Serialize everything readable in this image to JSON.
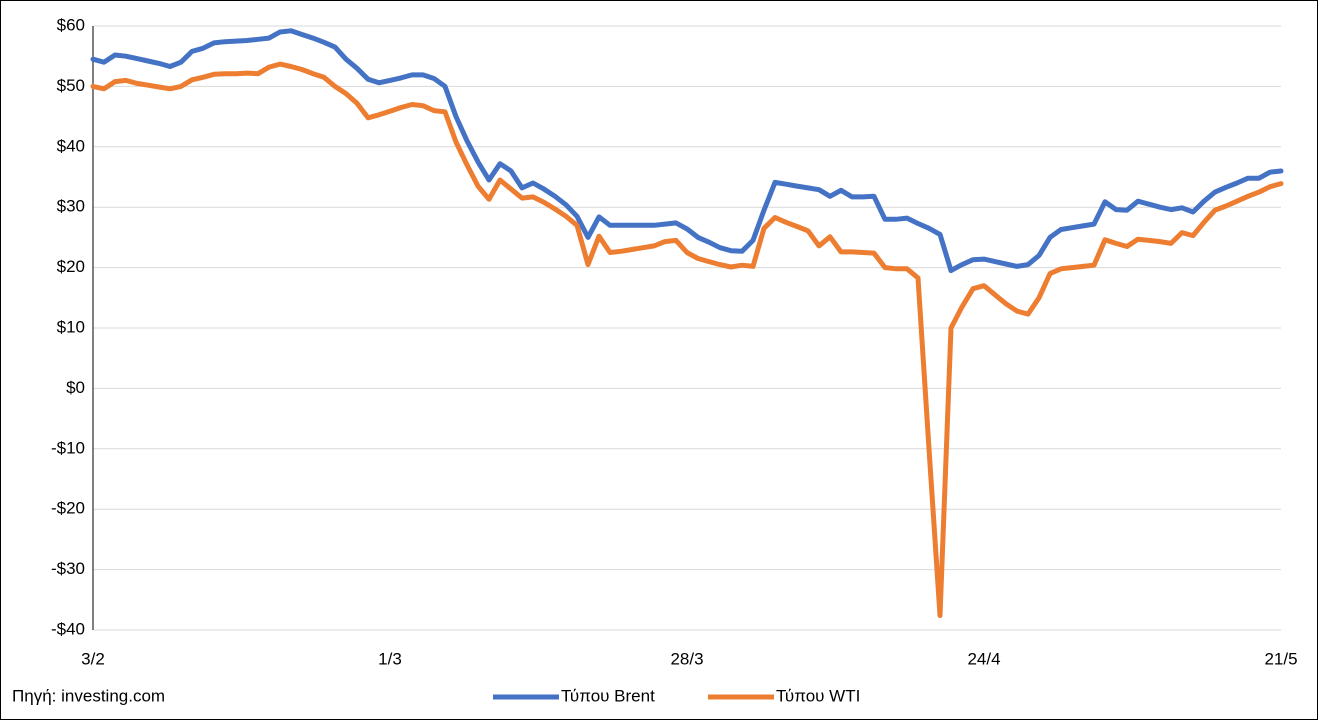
{
  "chart_data": {
    "type": "line",
    "source": "Πηγή: investing.com",
    "categories": [
      "3/2",
      null,
      null,
      null,
      null,
      null,
      null,
      null,
      null,
      null,
      null,
      null,
      null,
      null,
      null,
      null,
      null,
      null,
      null,
      null,
      null,
      null,
      null,
      null,
      null,
      null,
      null,
      "1/3",
      null,
      null,
      null,
      null,
      null,
      null,
      null,
      null,
      null,
      null,
      null,
      null,
      null,
      null,
      null,
      null,
      null,
      null,
      null,
      null,
      null,
      null,
      null,
      null,
      null,
      null,
      "28/3",
      null,
      null,
      null,
      null,
      null,
      null,
      null,
      null,
      null,
      null,
      null,
      null,
      null,
      null,
      null,
      null,
      null,
      null,
      null,
      null,
      null,
      null,
      null,
      null,
      null,
      null,
      "24/4",
      null,
      null,
      null,
      null,
      null,
      null,
      null,
      null,
      null,
      null,
      null,
      null,
      null,
      null,
      null,
      null,
      null,
      null,
      null,
      null,
      null,
      null,
      null,
      null,
      null,
      null,
      "21/5"
    ],
    "series": [
      {
        "name": "Τύπου Brent",
        "color": "#4472c4",
        "values": [
          54.5,
          54,
          55.2,
          55,
          54.6,
          54.2,
          53.8,
          53.3,
          54,
          55.8,
          56.3,
          57.2,
          57.4,
          57.5,
          57.6,
          57.8,
          58,
          59,
          59.2,
          58.6,
          58,
          57.3,
          56.5,
          54.5,
          53,
          51.2,
          50.6,
          51,
          51.4,
          51.9,
          51.9,
          51.3,
          50,
          45,
          41,
          37.5,
          34.5,
          37.2,
          36,
          33.2,
          34,
          33,
          31.8,
          30.4,
          28.5,
          25,
          28.4,
          27,
          27,
          27,
          27,
          27,
          27.2,
          27.4,
          26.4,
          25,
          24.2,
          23.3,
          22.8,
          22.7,
          24.5,
          29.5,
          34.1,
          33.8,
          33.5,
          33.2,
          32.9,
          31.8,
          32.8,
          31.7,
          31.7,
          31.8,
          28,
          28,
          28.2,
          27.3,
          26.5,
          25.5,
          19.5,
          20.5,
          21.3,
          21.4,
          21,
          20.6,
          20.2,
          20.5,
          22,
          25,
          26.3,
          26.6,
          26.9,
          27.2,
          30.9,
          29.6,
          29.5,
          31,
          30.5,
          30,
          29.6,
          29.9,
          29.2,
          31,
          32.5,
          33.3,
          34,
          34.8,
          34.8,
          35.8,
          36
        ]
      },
      {
        "name": "Τύπου WTI",
        "color": "#ed7d31",
        "values": [
          50,
          49.6,
          50.8,
          51,
          50.5,
          50.2,
          49.9,
          49.6,
          50,
          51.1,
          51.5,
          52,
          52.1,
          52.1,
          52.2,
          52.1,
          53.2,
          53.7,
          53.3,
          52.8,
          52.1,
          51.5,
          50,
          48.8,
          47.2,
          44.8,
          45.3,
          45.9,
          46.5,
          47,
          46.8,
          46,
          45.8,
          40.8,
          37,
          33.5,
          31.3,
          34.5,
          33,
          31.5,
          31.7,
          30.8,
          29.7,
          28.5,
          27,
          20.5,
          25.2,
          22.5,
          22.7,
          23,
          23.3,
          23.6,
          24.3,
          24.5,
          22.5,
          21.5,
          21,
          20.5,
          20.1,
          20.4,
          20.2,
          26.5,
          28.3,
          27.5,
          26.8,
          26.1,
          23.6,
          25.1,
          22.6,
          22.6,
          22.5,
          22.4,
          20,
          19.8,
          19.8,
          18.3,
          -10,
          -37.6,
          10,
          13.5,
          16.5,
          17,
          15.5,
          14,
          12.8,
          12.3,
          15,
          19,
          19.8,
          20,
          20.2,
          20.4,
          24.6,
          24,
          23.5,
          24.7,
          24.5,
          24.3,
          24,
          25.8,
          25.3,
          27.5,
          29.5,
          30.2,
          31,
          31.8,
          32.5,
          33.4,
          33.9
        ]
      }
    ],
    "ylim": [
      -40,
      60
    ],
    "yticks": [
      {
        "value": -40,
        "label": "-$40"
      },
      {
        "value": -30,
        "label": "-$30"
      },
      {
        "value": -20,
        "label": "-$20"
      },
      {
        "value": -10,
        "label": "-$10"
      },
      {
        "value": 0,
        "label": "$0"
      },
      {
        "value": 10,
        "label": "$10"
      },
      {
        "value": 20,
        "label": "$20"
      },
      {
        "value": 30,
        "label": "$30"
      },
      {
        "value": 40,
        "label": "$40"
      },
      {
        "value": 50,
        "label": "$50"
      },
      {
        "value": 60,
        "label": "$60"
      }
    ],
    "grid": true,
    "legend": "bottom"
  }
}
